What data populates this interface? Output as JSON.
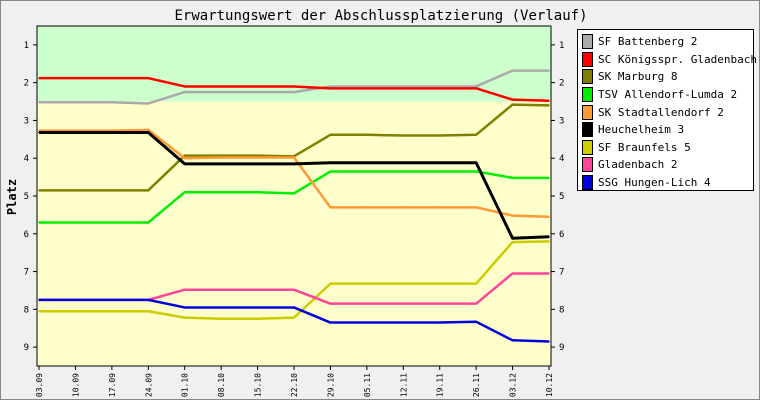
{
  "chart_data": {
    "type": "line",
    "title": "Erwartungswert der Abschlussplatzierung (Verlauf)",
    "ylabel": "Platz",
    "xlabel": "",
    "ylim": [
      0.5,
      9.5
    ],
    "y_inverted": true,
    "yticks": [
      1,
      2,
      3,
      4,
      5,
      6,
      7,
      8,
      9
    ],
    "categories": [
      "03.09",
      "10.09",
      "17.09",
      "24.09",
      "01.10",
      "08.10",
      "15.10",
      "22.10",
      "29.10",
      "05.11",
      "12.11",
      "19.11",
      "26.11",
      "03.12",
      "10.12"
    ],
    "bands": [
      {
        "from": 0.5,
        "to": 2.5,
        "color": "#ccffcc"
      },
      {
        "from": 2.5,
        "to": 9.5,
        "color": "#ffffcc"
      }
    ],
    "legend_position": "right",
    "series": [
      {
        "name": "SF Battenberg 2",
        "color": "#aaaaaa",
        "values": [
          2.52,
          2.52,
          2.52,
          2.55,
          2.25,
          2.25,
          2.25,
          2.25,
          2.1,
          2.1,
          2.1,
          2.1,
          2.1,
          1.68,
          1.68
        ]
      },
      {
        "name": "SC Königsspr. Gladenbach 3",
        "color": "#ff0000",
        "values": [
          1.88,
          1.88,
          1.88,
          1.88,
          2.1,
          2.1,
          2.1,
          2.1,
          2.15,
          2.15,
          2.15,
          2.15,
          2.15,
          2.45,
          2.48
        ]
      },
      {
        "name": "SK Marburg 8",
        "color": "#808000",
        "values": [
          4.85,
          4.85,
          4.85,
          4.85,
          3.93,
          3.93,
          3.93,
          3.95,
          3.38,
          3.38,
          3.4,
          3.4,
          3.38,
          2.58,
          2.6
        ]
      },
      {
        "name": "TSV Allendorf-Lumda 2",
        "color": "#00ee00",
        "values": [
          5.7,
          5.7,
          5.7,
          5.7,
          4.9,
          4.9,
          4.9,
          4.93,
          4.35,
          4.35,
          4.35,
          4.35,
          4.35,
          4.52,
          4.52
        ]
      },
      {
        "name": "SK Stadtallendorf 2",
        "color": "#ff9933",
        "values": [
          3.27,
          3.27,
          3.27,
          3.25,
          4.0,
          3.98,
          3.98,
          3.98,
          5.3,
          5.3,
          5.3,
          5.3,
          5.3,
          5.52,
          5.55
        ]
      },
      {
        "name": "Heuchelheim 3",
        "color": "#000000",
        "values": [
          3.32,
          3.32,
          3.32,
          3.32,
          4.15,
          4.15,
          4.15,
          4.15,
          4.12,
          4.12,
          4.12,
          4.12,
          4.12,
          6.12,
          6.08
        ]
      },
      {
        "name": "SF Braunfels 5",
        "color": "#cccc00",
        "values": [
          8.05,
          8.05,
          8.05,
          8.05,
          8.22,
          8.25,
          8.25,
          8.22,
          7.32,
          7.32,
          7.32,
          7.32,
          7.32,
          6.22,
          6.2
        ]
      },
      {
        "name": "Gladenbach 2",
        "color": "#ff4499",
        "values": [
          7.75,
          7.75,
          7.75,
          7.75,
          7.48,
          7.48,
          7.48,
          7.48,
          7.85,
          7.85,
          7.85,
          7.85,
          7.85,
          7.05,
          7.05
        ]
      },
      {
        "name": "SSG Hungen-Lich 4",
        "color": "#0000dd",
        "values": [
          7.75,
          7.75,
          7.75,
          7.75,
          7.95,
          7.95,
          7.95,
          7.95,
          8.35,
          8.35,
          8.35,
          8.35,
          8.33,
          8.82,
          8.85
        ]
      }
    ]
  }
}
